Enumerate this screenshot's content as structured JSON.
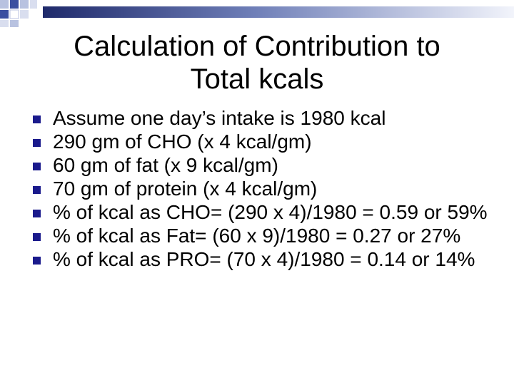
{
  "slide": {
    "title_line1": "Calculation of Contribution to",
    "title_line2": "Total kcals",
    "bullets": [
      "Assume one day’s intake is 1980 kcal",
      "290 gm of CHO (x 4 kcal/gm)",
      "60 gm of fat (x 9 kcal/gm)",
      "70 gm of protein (x 4 kcal/gm)",
      "% of kcal as CHO= (290 x 4)/1980 = 0.59 or 59%",
      "% of kcal as Fat= (60 x 9)/1980 = 0.27 or 27%",
      "% of kcal as PRO= (70 x 4)/1980 = 0.14 or 14%"
    ]
  },
  "colors": {
    "bullet_marker": "#1a1a8c",
    "accent_blue": "#3b4fa0",
    "bar_dark": "#1f2a6b"
  },
  "icons": {
    "bullet": "square-bullet-icon",
    "decoration": "checkered-squares-icon"
  }
}
